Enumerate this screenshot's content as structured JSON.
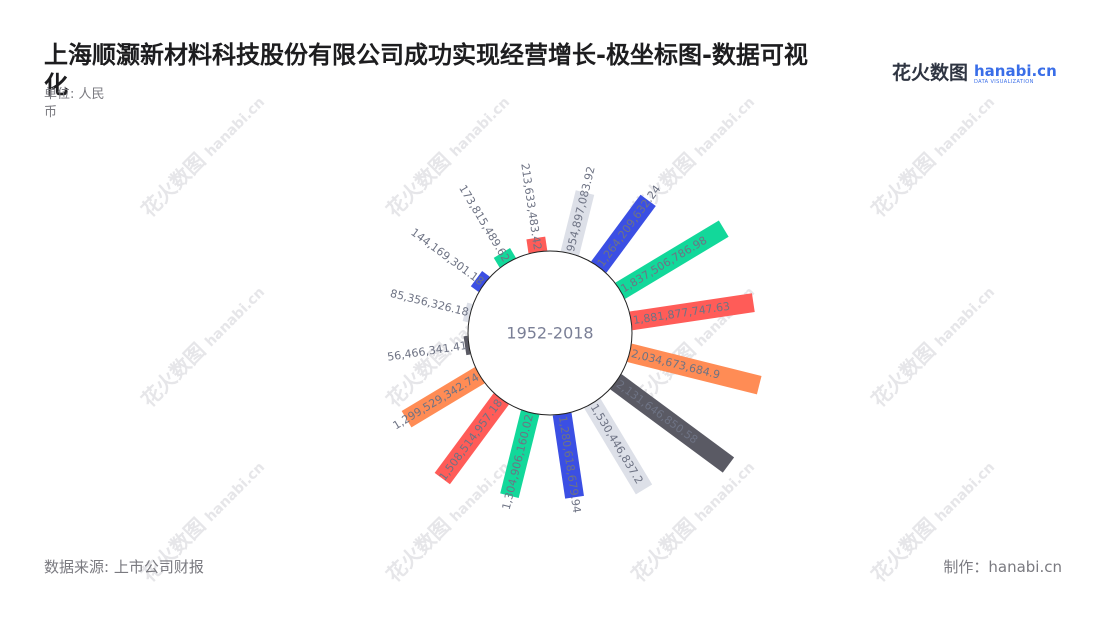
{
  "header": {
    "title": "上海顺灏新材料科技股份有限公司成功实现经营增长-极坐标图-数据可视化",
    "unit": "单位: 人民币"
  },
  "brand": {
    "name_cn": "花火数图",
    "name_en": "hanabi.cn",
    "sub": "DATA VISUALIZATION"
  },
  "footer": {
    "source": "数据来源: 上市公司财报",
    "credit": "制作：hanabi.cn"
  },
  "watermark": {
    "cn": "花火数图",
    "en": "hanabi.cn"
  },
  "chart_data": {
    "type": "bar",
    "subtype": "polar-radial-bar",
    "center_label": "1952-2018",
    "colors": [
      "#dde0e8",
      "#3b4fe4",
      "#12d89a",
      "#ff5c58",
      "#ff8c55",
      "#5a5a64"
    ],
    "values": [
      954897083.92,
      1264209632.24,
      1837506786.98,
      1881877747.63,
      2034673684.9,
      2131646850.58,
      1530446837.2,
      1280618679.94,
      1304906160.02,
      1508514957.18,
      1299529342.74,
      56466341.41,
      85356326.18,
      144169301.18,
      173815489.62,
      213633483.42
    ],
    "labels": [
      "954,897,083.92",
      "1,264,209,632.24",
      "1,837,506,786.98",
      "1,881,877,747.63",
      "2,034,673,684.9",
      "2,131,646,850.58",
      "1,530,446,837.2",
      "1,280,618,679.94",
      "1,304,906,160.02",
      "1,508,514,957.18",
      "1,299,529,342.74",
      "56,466,341.41",
      "85,356,326.18",
      "144,169,301.18",
      "173,815,489.62",
      "213,633,483.42"
    ]
  }
}
